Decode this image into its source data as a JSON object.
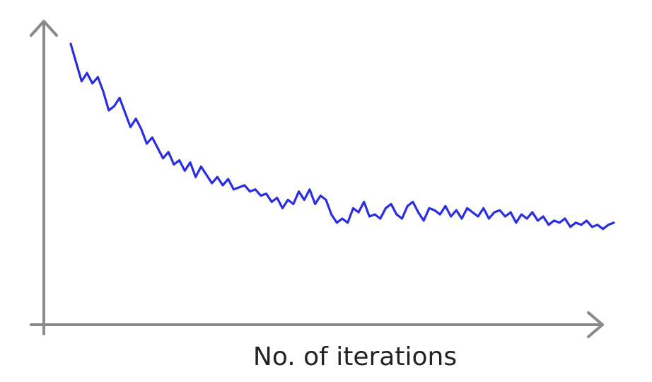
{
  "chart_data": {
    "type": "line",
    "title": "",
    "xlabel": "No. of iterations",
    "ylabel": "",
    "xlim": [
      0,
      100
    ],
    "ylim": [
      0,
      100
    ],
    "grid": false,
    "legend": "none",
    "series": [
      {
        "color": "#2a2ee0",
        "x": [
          0,
          1,
          2,
          3,
          4,
          5,
          6,
          7,
          8,
          9,
          10,
          11,
          12,
          13,
          14,
          15,
          16,
          17,
          18,
          19,
          20,
          21,
          22,
          23,
          24,
          25,
          26,
          27,
          28,
          29,
          30,
          31,
          32,
          33,
          34,
          35,
          36,
          37,
          38,
          39,
          40,
          41,
          42,
          43,
          44,
          45,
          46,
          47,
          48,
          49,
          50,
          51,
          52,
          53,
          54,
          55,
          56,
          57,
          58,
          59,
          60,
          61,
          62,
          63,
          64,
          65,
          66,
          67,
          68,
          69,
          70,
          71,
          72,
          73,
          74,
          75,
          76,
          77,
          78,
          79,
          80,
          81,
          82,
          83,
          84,
          85,
          86,
          87,
          88,
          89,
          90,
          91,
          92,
          93,
          94,
          95,
          96,
          97,
          98,
          99,
          100
        ],
        "y": [
          100,
          91,
          82,
          86,
          81,
          84,
          77,
          68,
          70,
          74,
          67,
          60,
          64,
          59,
          52,
          55,
          50,
          45,
          48,
          42,
          44,
          39,
          43,
          36,
          41,
          37,
          33,
          36,
          32,
          35,
          30,
          31,
          32,
          29,
          30,
          27,
          28,
          24,
          26,
          21,
          25,
          23,
          29,
          25,
          30,
          23,
          27,
          25,
          18,
          14,
          16,
          14,
          21,
          19,
          24,
          17,
          18,
          16,
          21,
          23,
          18,
          16,
          22,
          24,
          19,
          15,
          21,
          20,
          18,
          22,
          17,
          20,
          16,
          21,
          19,
          17,
          21,
          16,
          19,
          20,
          17,
          19,
          14,
          18,
          16,
          19,
          15,
          17,
          13,
          15,
          14,
          16,
          12,
          14,
          13,
          15,
          12,
          13,
          11,
          13,
          14
        ]
      }
    ]
  }
}
